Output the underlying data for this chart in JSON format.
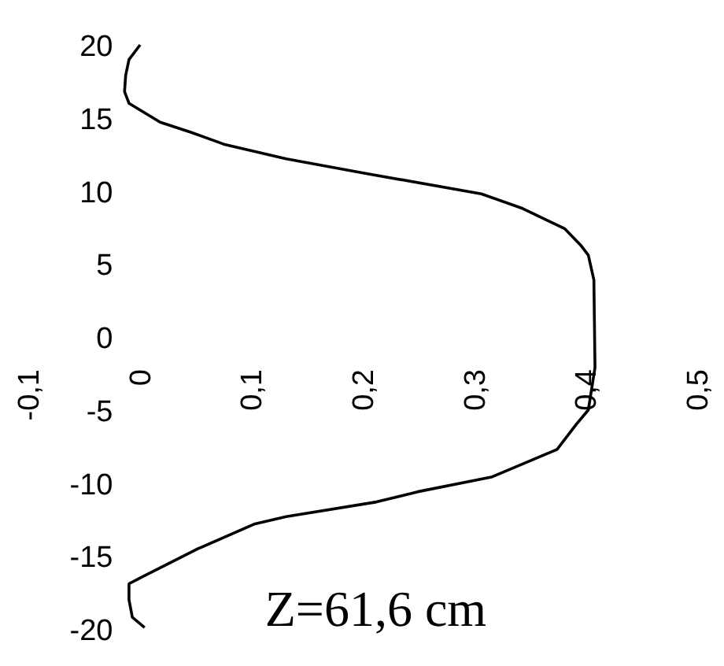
{
  "chart_data": {
    "type": "line",
    "annotations": [
      "Z=61,6 cm"
    ],
    "series": [
      {
        "color": "#000000",
        "x": [
          0.001,
          -0.009,
          -0.012,
          -0.013,
          -0.009,
          0.019,
          0.047,
          0.076,
          0.132,
          0.203,
          0.307,
          0.344,
          0.382,
          0.396,
          0.403,
          0.408,
          0.409,
          0.403,
          0.392,
          0.375,
          0.316,
          0.25,
          0.213,
          0.132,
          0.104,
          0.053,
          0.001,
          -0.009,
          -0.009,
          -0.006,
          0.005
        ],
        "values": [
          20.0,
          19.0,
          17.9,
          16.8,
          16.0,
          14.7,
          14.0,
          13.2,
          12.2,
          11.2,
          9.8,
          8.8,
          7.4,
          6.3,
          5.6,
          3.9,
          -2.1,
          -5.0,
          -6.0,
          -7.7,
          -9.6,
          -10.6,
          -11.3,
          -12.3,
          -12.8,
          -14.5,
          -16.5,
          -16.9,
          -18.0,
          -19.2,
          -19.9
        ]
      }
    ],
    "xlim": [
      -0.1,
      0.5
    ],
    "ylim": [
      -20,
      20
    ],
    "xticks": [
      {
        "value": -0.1,
        "label": "-0,1"
      },
      0,
      {
        "value": 0.1,
        "label": "0,1"
      },
      {
        "value": 0.2,
        "label": "0,2"
      },
      {
        "value": 0.3,
        "label": "0,3"
      },
      {
        "value": 0.4,
        "label": "0,4"
      },
      {
        "value": 0.5,
        "label": "0,5"
      }
    ],
    "yticks": [
      -20,
      -15,
      -10,
      -5,
      0,
      5,
      10,
      15,
      20
    ],
    "grid": false,
    "line_style": "solid"
  }
}
